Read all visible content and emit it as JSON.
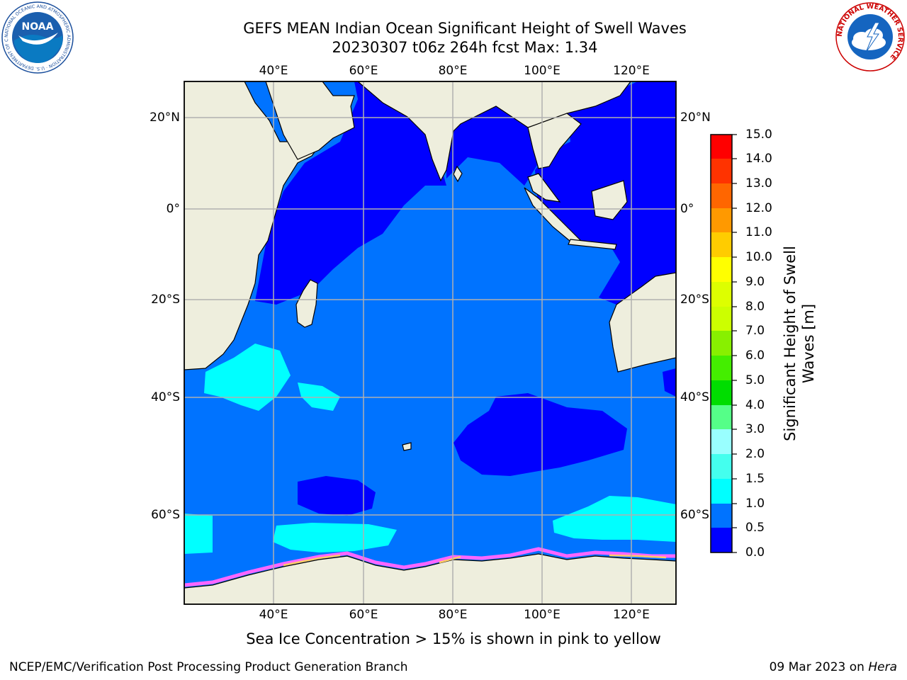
{
  "header": {
    "title_line1": "GEFS MEAN Indian Ocean Significant Height of Swell Waves",
    "title_line2": "20230307 t06z 264h fcst   Max: 1.34"
  },
  "logos": {
    "left": {
      "name": "noaa-logo",
      "text": "NOAA",
      "ring_text": "NATIONAL OCEANIC AND ATMOSPHERIC ADMINISTRATION · U.S. DEPARTMENT OF COMMERCE"
    },
    "right": {
      "name": "nws-logo",
      "ring_text": "NATIONAL WEATHER SERVICE"
    }
  },
  "map": {
    "longitude_ticks": [
      "40°E",
      "60°E",
      "80°E",
      "100°E",
      "120°E"
    ],
    "latitude_ticks": [
      "20°N",
      "0°",
      "20°S",
      "40°S",
      "60°S"
    ],
    "colors": {
      "land": "#eeeedd",
      "ocean_0_0_5": "#0000ff",
      "ocean_0_5_1_0": "#0073ff",
      "ocean_1_0_1_5": "#00ffff",
      "sea_ice": "#ff66ff",
      "grid": "#b0b0b0"
    }
  },
  "colorbar": {
    "title": "Significant Height of Swell Waves [m]",
    "tick_labels": [
      "0.0",
      "0.5",
      "1.0",
      "1.5",
      "2.0",
      "3.0",
      "4.0",
      "5.0",
      "6.0",
      "7.0",
      "8.0",
      "9.0",
      "10.0",
      "11.0",
      "12.0",
      "13.0",
      "14.0",
      "15.0"
    ],
    "colors": [
      "#0000ff",
      "#0073ff",
      "#00ffff",
      "#44ffee",
      "#99ffff",
      "#55ff88",
      "#00dd00",
      "#44ee00",
      "#88f000",
      "#ccff00",
      "#ddff00",
      "#ffff00",
      "#ffcc00",
      "#ff9900",
      "#ff6600",
      "#ff3300",
      "#ff0000"
    ]
  },
  "footer": {
    "note": "Sea Ice Concentration > 15% is shown in pink to yellow",
    "credit_left": "NCEP/EMC/Verification Post Processing Product Generation Branch",
    "credit_right_prefix": "09 Mar 2023 on ",
    "credit_right_host": "Hera"
  }
}
